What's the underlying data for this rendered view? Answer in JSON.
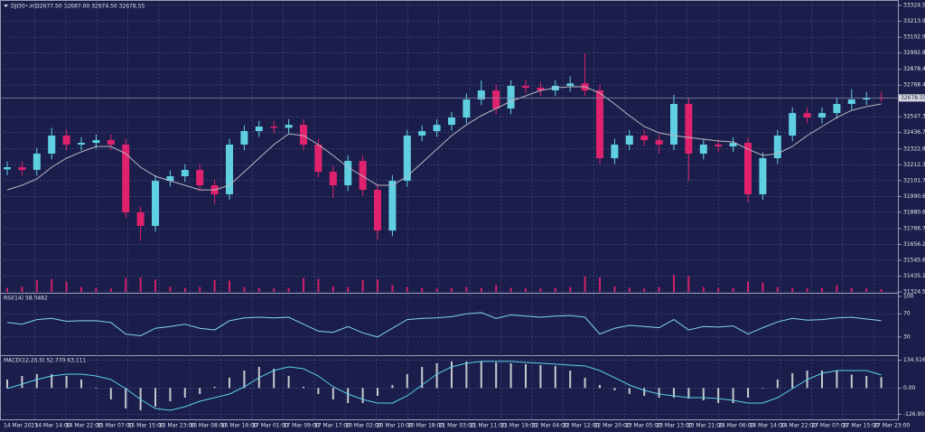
{
  "chart_data": {
    "type": "candlestick",
    "title": "DJI30•,H1",
    "quote": "32677.50 32687.00 32674.50 32678.55",
    "up_color": "#5fd0e2",
    "down_color": "#e0226e",
    "grid": true,
    "ylim": [
      31324.55,
      33324.5
    ],
    "yticks": [
      {
        "value": 33324.5,
        "label": "33324.50"
      },
      {
        "value": 33213.95,
        "label": "33213.95"
      },
      {
        "value": 33102.95,
        "label": "33102.95"
      },
      {
        "value": 32992.85,
        "label": "32992.85"
      },
      {
        "value": 32878.4,
        "label": "32878.40"
      },
      {
        "value": 32768.4,
        "label": "32768.40"
      },
      {
        "value": 32547.3,
        "label": "32547.30"
      },
      {
        "value": 32436.75,
        "label": "32436.75"
      },
      {
        "value": 32322.85,
        "label": "32322.85"
      },
      {
        "value": 32212.3,
        "label": "32212.30"
      },
      {
        "value": 32101.75,
        "label": "32101.75"
      },
      {
        "value": 31990.65,
        "label": "31990.65"
      },
      {
        "value": 31880.65,
        "label": "31880.65"
      },
      {
        "value": 31766.75,
        "label": "31766.75"
      },
      {
        "value": 31656.2,
        "label": "31656.20"
      },
      {
        "value": 31545.65,
        "label": "31545.65"
      },
      {
        "value": 31435.1,
        "label": "31435.10"
      },
      {
        "value": 31324.55,
        "label": "31324.55"
      }
    ],
    "x_labels": [
      "14 Mar 2023",
      "14 Mar 14:00",
      "14 Mar 22:00",
      "15 Mar 07:00",
      "15 Mar 15:00",
      "15 Mar 23:00",
      "16 Mar 08:00",
      "16 Mar 16:00",
      "17 Mar 01:00",
      "17 Mar 09:00",
      "17 Mar 17:00",
      "20 Mar 02:00",
      "20 Mar 10:00",
      "20 Mar 18:00",
      "21 Mar 03:00",
      "21 Mar 11:00",
      "21 Mar 19:00",
      "22 Mar 04:00",
      "22 Mar 12:00",
      "22 Mar 20:00",
      "23 Mar 05:00",
      "23 Mar 13:00",
      "23 Mar 21:00",
      "24 Mar 06:00",
      "24 Mar 14:00",
      "24 Mar 22:00",
      "27 Mar 07:00",
      "27 Mar 15:00",
      "27 Mar 23:00"
    ],
    "open": [
      32180,
      32195,
      32176,
      32290,
      32416,
      32353,
      32365,
      32384,
      32353,
      31880,
      31785,
      32100,
      32132,
      32176,
      32069,
      32006,
      32353,
      32447,
      32479,
      32470,
      32491,
      32353,
      32163,
      32069,
      32239,
      32037,
      31753,
      32100,
      32416,
      32447,
      32491,
      32542,
      32668,
      32731,
      32605,
      32763,
      32750,
      32731,
      32763,
      32780,
      32731,
      32258,
      32353,
      32416,
      32384,
      32353,
      32637,
      32290,
      32353,
      32340,
      32365,
      32006,
      32258,
      32416,
      32573,
      32542,
      32573,
      32637,
      32668,
      32681
    ],
    "high": [
      32235,
      32235,
      32330,
      32470,
      32456,
      32405,
      32424,
      32424,
      32393,
      31920,
      32140,
      32172,
      32216,
      32216,
      32109,
      32393,
      32487,
      32519,
      32519,
      32531,
      32531,
      32393,
      32203,
      32279,
      32279,
      32077,
      32140,
      32456,
      32487,
      32531,
      32582,
      32708,
      32800,
      32771,
      32803,
      32803,
      32790,
      32803,
      32830,
      32990,
      32771,
      32393,
      32456,
      32456,
      32424,
      32700,
      32677,
      32393,
      32393,
      32405,
      32405,
      32298,
      32456,
      32613,
      32613,
      32613,
      32677,
      32740,
      32721,
      32721
    ],
    "low": [
      32140,
      32136,
      32136,
      32250,
      32313,
      32313,
      32325,
      32313,
      31840,
      31680,
      31745,
      32060,
      32092,
      32029,
      31940,
      31966,
      32313,
      32407,
      32430,
      32430,
      32313,
      32123,
      31980,
      32029,
      31997,
      31690,
      31713,
      32060,
      32376,
      32407,
      32451,
      32502,
      32628,
      32565,
      32565,
      32710,
      32691,
      32691,
      32723,
      32691,
      32218,
      32218,
      32313,
      32344,
      32290,
      32313,
      32100,
      32250,
      32300,
      32300,
      31950,
      31966,
      32218,
      32376,
      32502,
      32502,
      32533,
      32597,
      32628,
      32650
    ],
    "close": [
      32195,
      32176,
      32290,
      32416,
      32353,
      32365,
      32384,
      32353,
      31880,
      31785,
      32100,
      32132,
      32176,
      32069,
      32006,
      32353,
      32447,
      32479,
      32470,
      32491,
      32353,
      32163,
      32069,
      32239,
      32037,
      31753,
      32100,
      32416,
      32447,
      32491,
      32542,
      32668,
      32731,
      32605,
      32763,
      32750,
      32731,
      32763,
      32780,
      32731,
      32258,
      32353,
      32416,
      32384,
      32353,
      32637,
      32290,
      32353,
      32340,
      32365,
      32006,
      32258,
      32416,
      32573,
      32542,
      32573,
      32637,
      32668,
      32681,
      32678.55
    ],
    "ma": {
      "color": "#b8b8c4",
      "values": [
        32037,
        32069,
        32113,
        32195,
        32258,
        32302,
        32340,
        32340,
        32290,
        32195,
        32132,
        32100,
        32069,
        32037,
        32037,
        32069,
        32163,
        32258,
        32353,
        32428,
        32416,
        32353,
        32277,
        32195,
        32132,
        32069,
        32069,
        32132,
        32226,
        32321,
        32416,
        32491,
        32555,
        32605,
        32656,
        32693,
        32731,
        32750,
        32757,
        32757,
        32712,
        32637,
        32555,
        32479,
        32435,
        32416,
        32403,
        32391,
        32378,
        32372,
        32321,
        32277,
        32290,
        32340,
        32416,
        32479,
        32542,
        32592,
        32618,
        32637
      ]
    },
    "volume": {
      "color": "#d0206a",
      "ylim": [
        0,
        100
      ],
      "values": [
        12,
        15,
        35,
        38,
        30,
        14,
        12,
        10,
        40,
        42,
        36,
        15,
        12,
        14,
        35,
        33,
        14,
        12,
        10,
        12,
        40,
        38,
        16,
        14,
        35,
        36,
        20,
        14,
        12,
        10,
        12,
        14,
        12,
        20,
        12,
        10,
        10,
        12,
        14,
        45,
        42,
        16,
        12,
        10,
        14,
        50,
        46,
        14,
        12,
        12,
        30,
        28,
        14,
        12,
        10,
        12,
        20,
        12,
        10,
        8
      ]
    },
    "rsi": {
      "label": "RSI(14) 58.0482",
      "color": "#7fd8ea",
      "ylim": [
        0,
        100
      ],
      "yticks": [
        100,
        70,
        30
      ],
      "values": [
        55,
        52,
        60,
        62,
        57,
        58,
        58,
        55,
        35,
        32,
        45,
        48,
        52,
        45,
        42,
        58,
        63,
        64,
        63,
        64,
        52,
        40,
        38,
        48,
        37,
        30,
        45,
        60,
        62,
        63,
        65,
        70,
        72,
        62,
        68,
        66,
        64,
        66,
        67,
        64,
        35,
        45,
        50,
        48,
        46,
        60,
        42,
        48,
        47,
        49,
        35,
        46,
        56,
        62,
        59,
        60,
        63,
        64,
        61,
        58.0482
      ]
    },
    "macd": {
      "label": "MACD(12,26,9) 52.770 63.111",
      "hist_color": "#c8c8d0",
      "signal_color": "#5ad0ea",
      "ylim": [
        -160,
        150
      ],
      "yticks": [
        134.516,
        {
          "value": 0,
          "label": "0.00"
        },
        -126.901
      ],
      "histogram": [
        41.0,
        58.5,
        67.2,
        67.2,
        58.5,
        41.0,
        -2.6,
        -55.0,
        -98.7,
        -107.4,
        -90.0,
        -63.8,
        -46.3,
        -28.8,
        6.1,
        49.8,
        84.7,
        102.2,
        93.4,
        58.5,
        6.1,
        -28.8,
        -55.0,
        -72.5,
        -72.5,
        -37.6,
        14.8,
        67.2,
        102.2,
        119.7,
        128.4,
        128.4,
        128.4,
        124.0,
        119.7,
        115.3,
        110.9,
        106.6,
        84.7,
        49.8,
        14.8,
        -11.4,
        -28.8,
        -37.6,
        -46.3,
        -46.3,
        -50.7,
        -59.4,
        -72.5,
        -72.5,
        -46.3,
        -2.6,
        41.0,
        71.6,
        84.7,
        84.7,
        84.7,
        65,
        58,
        52.77
      ],
      "signal": [
        -2.6,
        19.2,
        41.0,
        58.5,
        67.2,
        67.2,
        58.5,
        41.0,
        -2.6,
        -55.0,
        -98.7,
        -107.4,
        -90.0,
        -63.8,
        -46.3,
        -28.8,
        6.1,
        49.8,
        84.7,
        102.2,
        93.4,
        58.5,
        6.1,
        -28.8,
        -55.0,
        -72.5,
        -72.5,
        -37.6,
        14.8,
        67.2,
        102.2,
        119.7,
        128.4,
        128.4,
        128.4,
        124.0,
        119.7,
        115.3,
        110.9,
        106.6,
        84.7,
        49.8,
        14.8,
        -11.4,
        -28.8,
        -37.6,
        -46.3,
        -46.3,
        -50.7,
        -59.4,
        -72.5,
        -72.5,
        -46.3,
        -2.6,
        41.0,
        71.6,
        84.7,
        84.7,
        84.7,
        63.111
      ]
    }
  }
}
